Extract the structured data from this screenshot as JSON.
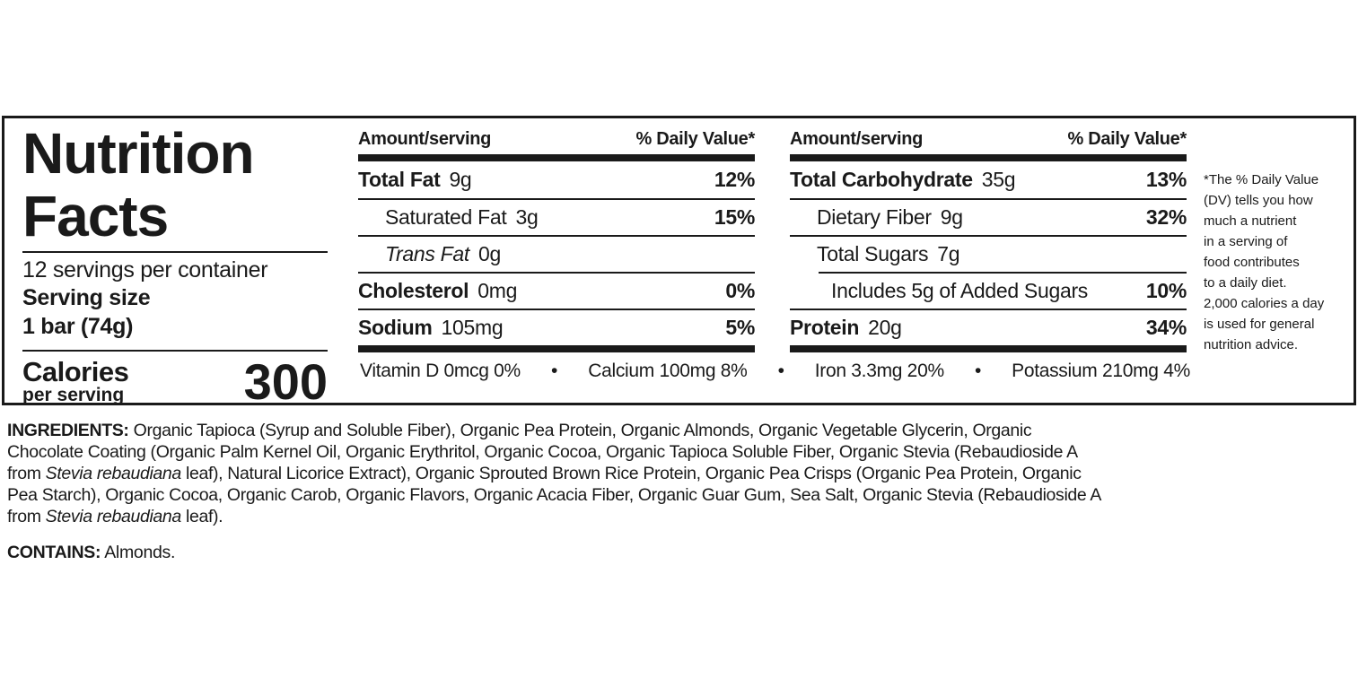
{
  "label": {
    "title_line1": "Nutrition",
    "title_line2": "Facts",
    "servings_per_container": "12 servings per container",
    "serving_size_label": "Serving size",
    "serving_size_value": "1 bar (74g)",
    "calories_label": "Calories",
    "calories_sublabel": "per serving",
    "calories_value": "300",
    "columns": [
      {
        "header_amount": "Amount/serving",
        "header_dv": "% Daily Value*",
        "rows": [
          {
            "name": "Total Fat",
            "amount": "9g",
            "dv": "12%",
            "bold": true,
            "indent": 0
          },
          {
            "name": "Saturated Fat",
            "amount": "3g",
            "dv": "15%",
            "bold": false,
            "indent": 1
          },
          {
            "name": "Trans Fat",
            "amount": "0g",
            "dv": "",
            "bold": false,
            "italic": true,
            "indent": 1
          },
          {
            "name": "Cholesterol",
            "amount": "0mg",
            "dv": "0%",
            "bold": true,
            "indent": 0
          },
          {
            "name": "Sodium",
            "amount": "105mg",
            "dv": "5%",
            "bold": true,
            "indent": 0
          }
        ]
      },
      {
        "header_amount": "Amount/serving",
        "header_dv": "% Daily Value*",
        "rows": [
          {
            "name": "Total Carbohydrate",
            "amount": "35g",
            "dv": "13%",
            "bold": true,
            "indent": 0
          },
          {
            "name": "Dietary Fiber",
            "amount": "9g",
            "dv": "32%",
            "bold": false,
            "indent": 1
          },
          {
            "name": "Total Sugars",
            "amount": "7g",
            "dv": "",
            "bold": false,
            "indent": 1
          },
          {
            "name": "Includes 5g of Added Sugars",
            "amount": "",
            "dv": "10%",
            "bold": false,
            "indent": 2
          },
          {
            "name": "Protein",
            "amount": "20g",
            "dv": "34%",
            "bold": true,
            "indent": 0
          }
        ]
      }
    ],
    "vitamins": [
      "Vitamin D 0mcg 0%",
      "•",
      "Calcium 100mg 8%",
      "•",
      "Iron 3.3mg 20%",
      "•",
      "Potassium 210mg 4%"
    ],
    "footnote_lines": [
      "*The % Daily Value",
      "(DV) tells you how",
      "much a nutrient",
      "in a serving of",
      "food contributes",
      "to a daily diet.",
      "2,000 calories a day",
      "is used for general",
      "nutrition advice."
    ]
  },
  "ingredients": {
    "lines": [
      [
        {
          "t": "INGREDIENTS:",
          "s": "b"
        },
        {
          "t": " Organic Tapioca (Syrup and Soluble Fiber), Organic Pea Protein, Organic Almonds, Organic Vegetable Glycerin, Organic"
        }
      ],
      [
        {
          "t": "Chocolate Coating (Organic Palm Kernel Oil, Organic Erythritol, Organic Cocoa, Organic Tapioca Soluble Fiber, Organic Stevia (Rebaudioside A"
        }
      ],
      [
        {
          "t": "from "
        },
        {
          "t": "Stevia rebaudiana",
          "s": "i"
        },
        {
          "t": " leaf), Natural Licorice Extract), Organic Sprouted Brown Rice Protein, Organic Pea Crisps (Organic Pea Protein, Organic"
        }
      ],
      [
        {
          "t": "Pea Starch), Organic Cocoa, Organic Carob, Organic Flavors, Organic Acacia Fiber, Organic Guar Gum, Sea Salt, Organic Stevia (Rebaudioside A"
        }
      ],
      [
        {
          "t": "from "
        },
        {
          "t": "Stevia rebaudiana",
          "s": "i"
        },
        {
          "t": " leaf)."
        }
      ]
    ],
    "contains_label": "CONTAINS:",
    "contains_value": " Almonds."
  }
}
